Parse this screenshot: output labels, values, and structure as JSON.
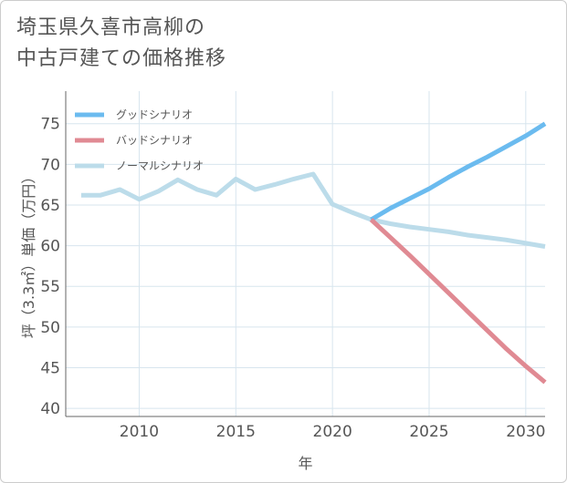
{
  "title": "埼玉県久喜市高柳の\n中古戸建ての価格推移",
  "chart_data": {
    "type": "line",
    "title": "埼玉県久喜市高柳の中古戸建ての価格推移",
    "xlabel": "年",
    "ylabel": "坪（3.3㎡）単価（万円）",
    "xlim": [
      2006.2,
      2031
    ],
    "ylim": [
      39,
      79
    ],
    "xticks": [
      2010,
      2015,
      2020,
      2025,
      2030
    ],
    "yticks": [
      40,
      45,
      50,
      55,
      60,
      65,
      70,
      75
    ],
    "grid": true,
    "legend_position": "top-left",
    "series": [
      {
        "name": "グッドシナリオ",
        "color": "#6bbbef",
        "x": [
          2022,
          2023,
          2024,
          2025,
          2026,
          2027,
          2028,
          2029,
          2030,
          2031
        ],
        "y": [
          63.2,
          64.6,
          65.8,
          67.0,
          68.4,
          69.7,
          70.9,
          72.2,
          73.5,
          75.0
        ]
      },
      {
        "name": "バッドシナリオ",
        "color": "#e08a93",
        "x": [
          2022,
          2023,
          2024,
          2025,
          2026,
          2027,
          2028,
          2029,
          2030,
          2031
        ],
        "y": [
          63.2,
          61.0,
          58.8,
          56.5,
          54.2,
          51.9,
          49.6,
          47.3,
          45.2,
          43.2
        ]
      },
      {
        "name": "ノーマルシナリオ",
        "color": "#bcdcea",
        "x": [
          2007,
          2008,
          2009,
          2010,
          2011,
          2012,
          2013,
          2014,
          2015,
          2016,
          2017,
          2018,
          2019,
          2020,
          2021,
          2022,
          2023,
          2024,
          2025,
          2026,
          2027,
          2028,
          2029,
          2030,
          2031
        ],
        "y": [
          66.2,
          66.2,
          66.9,
          65.7,
          66.7,
          68.1,
          66.9,
          66.2,
          68.2,
          66.9,
          67.5,
          68.2,
          68.8,
          65.1,
          64.1,
          63.2,
          62.7,
          62.3,
          62.0,
          61.7,
          61.3,
          61.0,
          60.7,
          60.3,
          59.9
        ]
      }
    ]
  }
}
